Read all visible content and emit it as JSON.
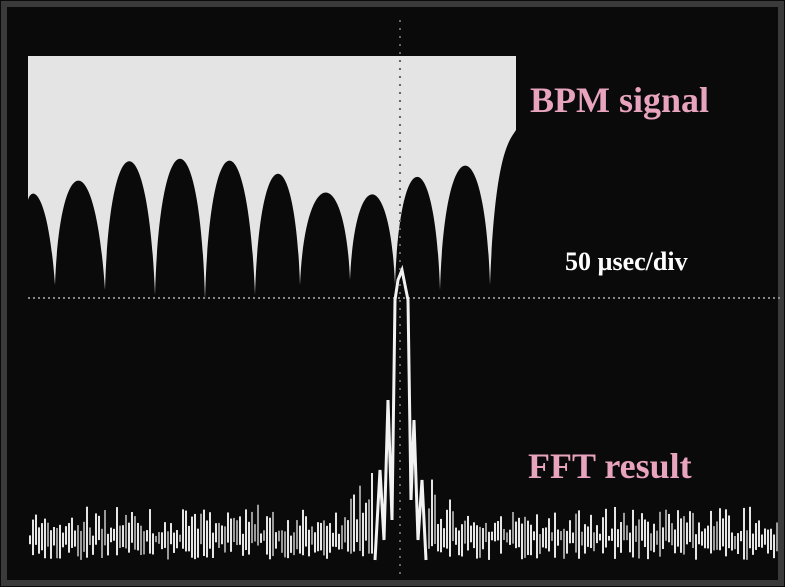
{
  "labels": {
    "signal": "BPM signal",
    "timebase": "50 µsec/div",
    "fft": "FFT result"
  }
}
